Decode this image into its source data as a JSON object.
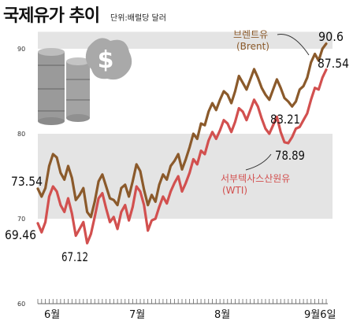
{
  "header": {
    "title": "국제유가 추이",
    "unit": "단위:배럴당 달러"
  },
  "chart_data": {
    "type": "line",
    "title": "국제유가 추이",
    "unit": "단위:배럴당 달러",
    "ylim": [
      60,
      92
    ],
    "y_ticks": [
      60,
      70,
      80,
      90
    ],
    "x_tick_labels": [
      "6월",
      "7월",
      "8월",
      "9월6일"
    ],
    "colors": {
      "brent": "#8b5a2b",
      "wti": "#d2504f",
      "band": "#e4e4e4"
    },
    "series": [
      {
        "name": "브렌트유 (Brent)",
        "label": "브렌트유",
        "sublabel": "(Brent)",
        "color": "#8b5a2b",
        "values": [
          73.54,
          72.6,
          73.6,
          76.2,
          77.6,
          77.2,
          75.4,
          74.6,
          76.2,
          74.8,
          72.2,
          72.8,
          73.6,
          70.8,
          70.2,
          72.0,
          74.4,
          75.2,
          73.8,
          72.4,
          72.2,
          71.6,
          73.6,
          74.0,
          72.6,
          74.4,
          76.4,
          75.6,
          73.4,
          71.6,
          72.8,
          72.0,
          74.0,
          75.2,
          74.6,
          76.2,
          76.8,
          77.6,
          75.8,
          77.0,
          78.4,
          80.0,
          79.4,
          81.2,
          81.0,
          82.6,
          83.6,
          82.8,
          84.0,
          85.0,
          84.6,
          83.6,
          85.0,
          86.8,
          86.0,
          85.2,
          86.4,
          87.6,
          86.6,
          85.4,
          84.6,
          84.0,
          85.2,
          86.4,
          85.4,
          84.2,
          83.8,
          83.21,
          83.8,
          85.2,
          85.6,
          86.6,
          88.4,
          89.4,
          88.6,
          90.0,
          90.6
        ]
      },
      {
        "name": "서부텍사스산원유 (WTI)",
        "label": "서부텍사스산원유",
        "sublabel": "(WTI)",
        "color": "#d2504f",
        "values": [
          69.46,
          68.4,
          69.6,
          72.6,
          73.8,
          73.2,
          71.6,
          70.8,
          72.4,
          70.6,
          68.0,
          68.8,
          69.6,
          67.12,
          68.2,
          70.2,
          72.4,
          73.0,
          71.2,
          69.6,
          70.2,
          68.8,
          70.8,
          71.6,
          69.8,
          71.4,
          73.8,
          73.2,
          71.6,
          68.6,
          69.8,
          70.0,
          71.4,
          72.6,
          71.8,
          73.2,
          74.2,
          75.0,
          73.2,
          74.2,
          75.4,
          77.0,
          76.4,
          78.0,
          77.6,
          79.2,
          80.2,
          79.4,
          80.4,
          81.6,
          81.2,
          80.2,
          81.4,
          83.0,
          82.6,
          81.6,
          82.8,
          84.0,
          83.2,
          81.8,
          80.6,
          80.0,
          81.0,
          82.0,
          80.2,
          79.0,
          78.89,
          79.6,
          80.6,
          80.8,
          81.6,
          82.4,
          84.0,
          85.4,
          85.2,
          86.6,
          87.54
        ]
      }
    ],
    "annotations": {
      "brent_start": "73.54",
      "brent_end": "90.6",
      "brent_low": "83.21",
      "wti_start": "69.46",
      "wti_low": "67.12",
      "wti_dip": "78.89",
      "wti_end": "87.54"
    }
  }
}
